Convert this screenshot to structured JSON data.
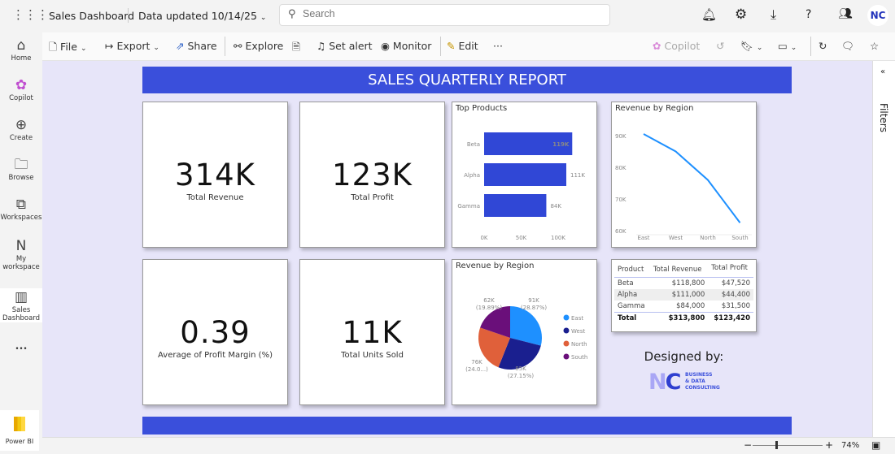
{
  "topbar": {
    "report_name": "Sales Dashboard",
    "data_updated": "Data updated 10/14/25",
    "search_placeholder": "Search",
    "avatar": "NC"
  },
  "rail": [
    {
      "label": "Home",
      "icon": "home-icon"
    },
    {
      "label": "Copilot",
      "icon": "copilot-icon"
    },
    {
      "label": "Create",
      "icon": "plus-circle-icon"
    },
    {
      "label": "Browse",
      "icon": "folder-icon"
    },
    {
      "label": "Workspaces",
      "icon": "workspaces-icon"
    },
    {
      "label": "My workspace",
      "icon": "avatar-icon"
    },
    {
      "label": "Sales Dashboard",
      "icon": "report-icon"
    }
  ],
  "rail_more": "•••",
  "rail_bottom": "Power BI",
  "toolbar": {
    "file": "File",
    "export": "Export",
    "share": "Share",
    "explore": "Explore",
    "set_alert": "Set alert",
    "monitor": "Monitor",
    "edit": "Edit",
    "more": "···",
    "copilot": "Copilot"
  },
  "filters_label": "Filters",
  "zoom_level": "74%",
  "report": {
    "title": "SALES QUARTERLY REPORT",
    "kpis": [
      {
        "value": "314K",
        "label": "Total Revenue"
      },
      {
        "value": "123K",
        "label": "Total Profit"
      },
      {
        "value": "0.39",
        "label": "Average of Profit Margin (%)"
      },
      {
        "value": "11K",
        "label": "Total Units Sold"
      }
    ],
    "designed_by": "Designed by:",
    "logo_text": "NC BUSINESS & DATA CONSULTING",
    "table": {
      "headers": [
        "Product",
        "Total Revenue",
        "Total Profit"
      ],
      "rows": [
        [
          "Beta",
          "$118,800",
          "$47,520"
        ],
        [
          "Alpha",
          "$111,000",
          "$44,400"
        ],
        [
          "Gamma",
          "$84,000",
          "$31,500"
        ]
      ],
      "total": [
        "Total",
        "$313,800",
        "$123,420"
      ]
    }
  },
  "colors": {
    "accent": "#3a4fdb",
    "bar": "#3047d6",
    "line": "#1e90ff",
    "east": "#1e90ff",
    "west": "#1a1f8f",
    "north": "#e0603a",
    "south": "#6a0f7a"
  },
  "chart_data": [
    {
      "type": "bar",
      "title": "Top Products",
      "categories": [
        "Beta",
        "Alpha",
        "Gamma"
      ],
      "values": [
        119,
        111,
        84
      ],
      "data_labels": [
        "119K",
        "111K",
        "84K"
      ],
      "xticks": [
        "0K",
        "50K",
        "100K"
      ],
      "xlim": [
        0,
        120
      ]
    },
    {
      "type": "line",
      "title": "Revenue by Region",
      "categories": [
        "East",
        "West",
        "North",
        "South"
      ],
      "values": [
        90.5,
        85,
        76,
        62.5
      ],
      "yticks": [
        "60K",
        "70K",
        "80K",
        "90K"
      ],
      "ylim": [
        60,
        93
      ]
    },
    {
      "type": "pie",
      "title": "Revenue by Region",
      "categories": [
        "East",
        "West",
        "North",
        "South"
      ],
      "values": [
        91,
        85,
        76,
        62
      ],
      "labels": [
        "91K (28.87%)",
        "85K (27.15%)",
        "76K (24.0...)",
        "62K (19.89%)"
      ],
      "legend": "right"
    }
  ]
}
